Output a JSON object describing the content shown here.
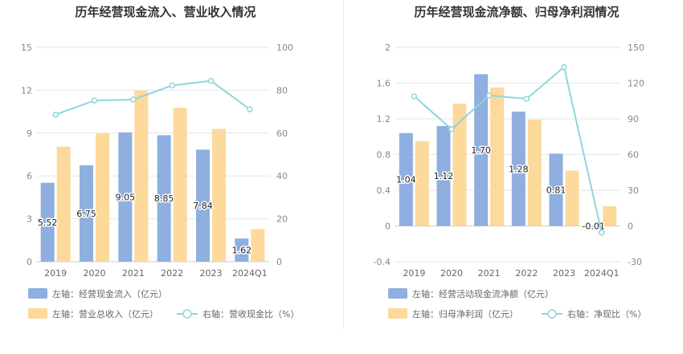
{
  "colors": {
    "bar_left": "#8eafdf",
    "bar_right": "#fdd99b",
    "line": "#8fd6da",
    "grid": "#e6e6e6",
    "axis": "#cccccc"
  },
  "chart_data": [
    {
      "type": "bar",
      "title": "历年经营现金流入、营业收入情况",
      "categories": [
        "2019",
        "2020",
        "2021",
        "2022",
        "2023",
        "2024Q1"
      ],
      "left_axis": {
        "ylim": [
          0,
          15
        ],
        "ticks": [
          0,
          3,
          6,
          9,
          12,
          15
        ]
      },
      "right_axis": {
        "ylim": [
          0,
          100
        ],
        "ticks": [
          0,
          20,
          40,
          60,
          80,
          100
        ]
      },
      "series": [
        {
          "name": "左轴：经营现金流入（亿元）",
          "axis": "left",
          "kind": "bar",
          "values": [
            5.52,
            6.75,
            9.05,
            8.85,
            7.84,
            1.62
          ],
          "labels": [
            "5.52",
            "6.75",
            "9.05",
            "8.85",
            "7.84",
            "1.62"
          ]
        },
        {
          "name": "左轴：营业总收入（亿元）",
          "axis": "left",
          "kind": "bar",
          "values": [
            8.05,
            8.98,
            11.97,
            10.77,
            9.29,
            2.28
          ]
        },
        {
          "name": "右轴：营收现金比（%）",
          "axis": "right",
          "kind": "line",
          "values": [
            68.6,
            75.2,
            75.6,
            82.2,
            84.4,
            71.1
          ]
        }
      ],
      "legend_placement": "bottom",
      "grid": true
    },
    {
      "type": "bar",
      "title": "历年经营现金流净额、归母净利润情况",
      "categories": [
        "2019",
        "2020",
        "2021",
        "2022",
        "2023",
        "2024Q1"
      ],
      "left_axis": {
        "ylim": [
          -0.4,
          2
        ],
        "ticks": [
          "-0.4",
          "0",
          "0.4",
          "0.8",
          "1.2",
          "1.6",
          "2"
        ]
      },
      "right_axis": {
        "ylim": [
          -30,
          150
        ],
        "ticks": [
          -30,
          0,
          30,
          60,
          90,
          120,
          150
        ]
      },
      "series": [
        {
          "name": "左轴：经营活动现金流净额（亿元）",
          "axis": "left",
          "kind": "bar",
          "values": [
            1.04,
            1.12,
            1.7,
            1.28,
            0.81,
            -0.01
          ],
          "labels": [
            "1.04",
            "1.12",
            "1.70",
            "1.28",
            "0.81",
            "-0.01"
          ]
        },
        {
          "name": "左轴：归母净利润（亿元）",
          "axis": "left",
          "kind": "bar",
          "values": [
            0.95,
            1.37,
            1.55,
            1.19,
            0.62,
            0.22
          ]
        },
        {
          "name": "右轴：净现比（%）",
          "axis": "right",
          "kind": "line",
          "values": [
            108.9,
            81.3,
            109.6,
            106.8,
            133.4,
            -5.6
          ]
        }
      ],
      "legend_placement": "bottom",
      "grid": true
    }
  ]
}
